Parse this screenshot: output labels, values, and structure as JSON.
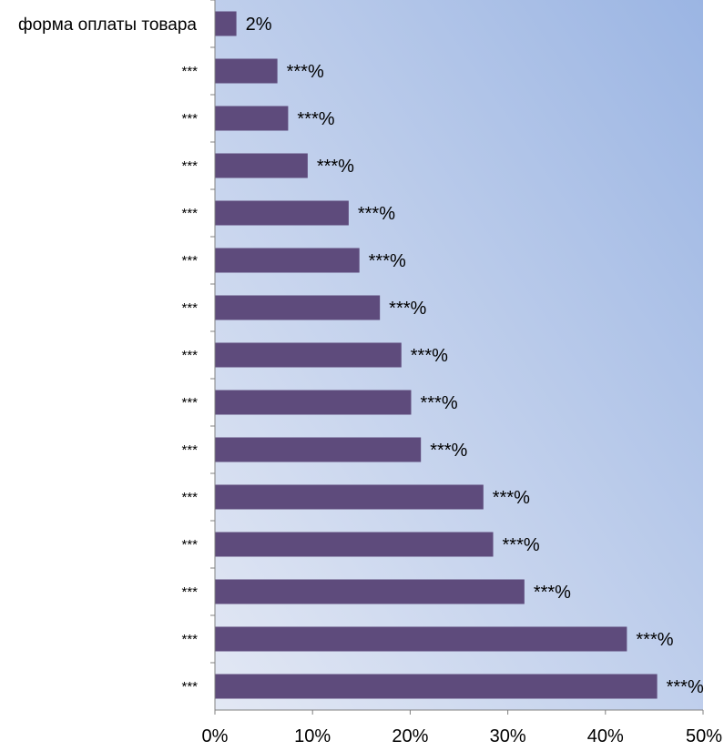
{
  "chart_data": {
    "type": "bar",
    "orientation": "horizontal",
    "categories": [
      "форма оплаты товара",
      "***",
      "***",
      "***",
      "***",
      "***",
      "***",
      "***",
      "***",
      "***",
      "***",
      "***",
      "***",
      "***",
      "***"
    ],
    "values": [
      2.2,
      6.4,
      7.5,
      9.5,
      13.7,
      14.8,
      16.9,
      19.1,
      20.1,
      21.1,
      27.5,
      28.5,
      31.7,
      42.2,
      45.3
    ],
    "data_labels": [
      "2%",
      "***%",
      "***%",
      "***%",
      "***%",
      "***%",
      "***%",
      "***%",
      "***%",
      "***%",
      "***%",
      "***%",
      "***%",
      "***%",
      "***%"
    ],
    "x_ticks": [
      "0%",
      "10%",
      "20%",
      "30%",
      "40%",
      "50%"
    ],
    "xlim": [
      0,
      50
    ],
    "bar_color": "#5e4b7c",
    "background_gradient": [
      "#e3e8f4",
      "#9bb5e3"
    ],
    "grid": false,
    "legend": "none"
  }
}
